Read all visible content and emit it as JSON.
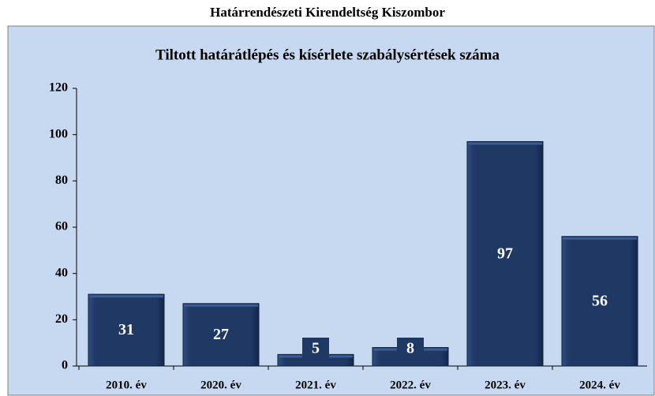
{
  "chart_data": {
    "type": "bar",
    "title": "Határrendészeti Kirendeltség Kiszombor",
    "subtitle": "Tiltott határátlépés és kísérlete szabálysértések száma",
    "categories": [
      "2010. év",
      "2020. év",
      "2021. év",
      "2022. év",
      "2023. év",
      "2024. év"
    ],
    "values": [
      31,
      27,
      5,
      8,
      97,
      56
    ],
    "color": "#1f3864",
    "ylim": [
      0,
      120
    ],
    "yticks": [
      0,
      20,
      40,
      60,
      80,
      100,
      120
    ],
    "grid": false
  }
}
